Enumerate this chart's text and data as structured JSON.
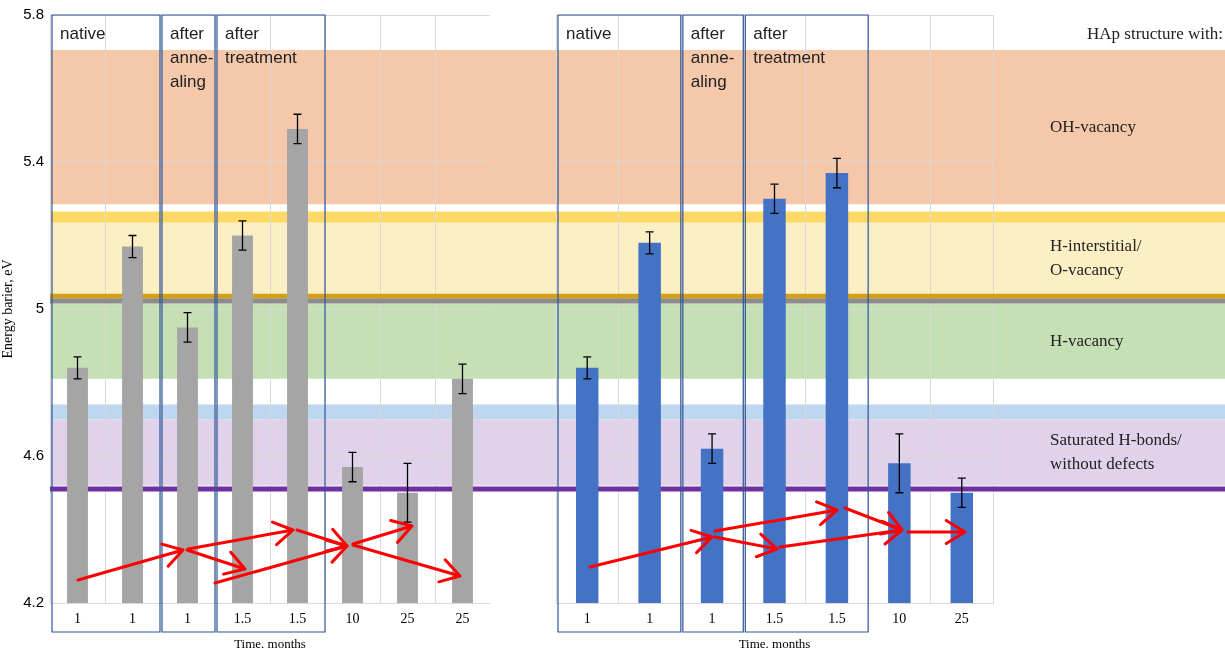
{
  "chart_data": [
    {
      "type": "bar",
      "xlabel": "Time. months",
      "ylabel": "Energy barier, eV",
      "categories": [
        "1",
        "1",
        "1",
        "1.5",
        "1.5",
        "10",
        "25",
        "25"
      ],
      "values": [
        4.84,
        5.17,
        4.95,
        5.2,
        5.49,
        4.57,
        4.5,
        4.81
      ],
      "errors": [
        0.03,
        0.03,
        0.04,
        0.04,
        0.04,
        0.04,
        0.08,
        0.04
      ],
      "color": "#a5a5a5",
      "ylim": [
        4.2,
        5.8
      ],
      "yticks": [
        4.2,
        4.6,
        5,
        5.4,
        5.8
      ],
      "grid": true,
      "bands": [
        {
          "axis": "y",
          "from": 5.285,
          "to": 5.705,
          "color": "#f5c8aa"
        },
        {
          "axis": "y",
          "from": 5.235,
          "to": 5.265,
          "color": "#ffd966"
        },
        {
          "axis": "y",
          "from": 5.04,
          "to": 5.235,
          "color": "#fdefc4"
        },
        {
          "axis": "y",
          "from": 4.81,
          "to": 5.015,
          "color": "#c5e0b4"
        },
        {
          "axis": "y",
          "from": 4.7,
          "to": 4.74,
          "color": "#bdd7ee"
        },
        {
          "axis": "y",
          "from": 4.52,
          "to": 4.7,
          "color": "#dfd2ea"
        }
      ],
      "ref_lines": [
        {
          "axis": "y",
          "value": 5.035,
          "color": "#d4a017"
        },
        {
          "axis": "y",
          "value": 5.022,
          "color": "#8c8c8c"
        },
        {
          "axis": "y",
          "value": 4.51,
          "color": "#7030a0"
        }
      ],
      "annotations": [
        "native",
        "after\nanne-\naling",
        "after\ntreatment"
      ]
    },
    {
      "type": "bar",
      "xlabel": "Time. months",
      "categories": [
        "1",
        "1",
        "1",
        "1.5",
        "1.5",
        "10",
        "25"
      ],
      "values": [
        4.84,
        5.18,
        4.62,
        5.3,
        5.37,
        4.58,
        4.5
      ],
      "errors": [
        0.03,
        0.03,
        0.04,
        0.04,
        0.04,
        0.08,
        0.04
      ],
      "color": "#4472c4",
      "ylim": [
        4.2,
        5.8
      ],
      "yticks": [
        4.2,
        4.6,
        5,
        5.4,
        5.8
      ],
      "grid": true,
      "tick_labels": "x",
      "bands": [
        {
          "axis": "y",
          "from": 5.285,
          "to": 5.705,
          "color": "#f5c8aa",
          "label": "OH-vacancy"
        },
        {
          "axis": "y",
          "from": 5.235,
          "to": 5.265,
          "color": "#ffd966"
        },
        {
          "axis": "y",
          "from": 5.04,
          "to": 5.235,
          "color": "#fdefc4",
          "label": "H-interstitial/\nO-vacancy"
        },
        {
          "axis": "y",
          "from": 4.81,
          "to": 5.015,
          "color": "#c5e0b4",
          "label": "H-vacancy"
        },
        {
          "axis": "y",
          "from": 4.7,
          "to": 4.74,
          "color": "#bdd7ee"
        },
        {
          "axis": "y",
          "from": 4.52,
          "to": 4.7,
          "color": "#dfd2ea",
          "label": "Saturated H-bonds/\nwithout defects"
        }
      ],
      "ref_lines": [
        {
          "axis": "y",
          "value": 5.035,
          "color": "#d4a017"
        },
        {
          "axis": "y",
          "value": 5.022,
          "color": "#8c8c8c"
        },
        {
          "axis": "y",
          "value": 4.51,
          "color": "#7030a0"
        }
      ],
      "annotations": [
        "native",
        "after\nanne-\naling",
        "after\ntreatment",
        "HAp structure with:"
      ]
    }
  ]
}
